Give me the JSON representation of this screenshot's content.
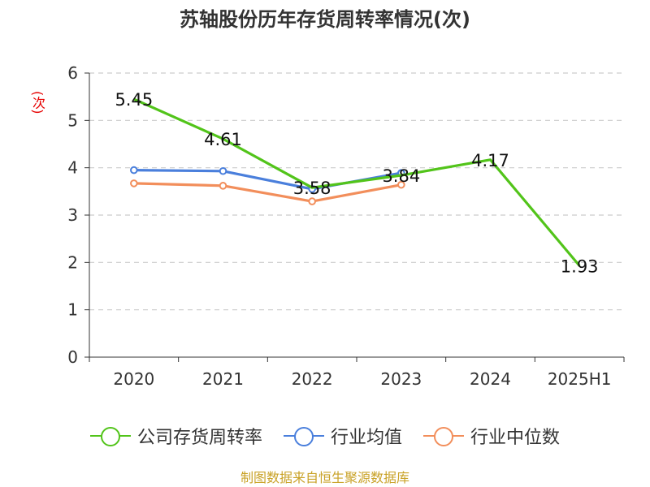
{
  "title": "苏轴股份历年存货周转率情况(次)",
  "footer": "制图数据来自恒生聚源数据库",
  "colors": {
    "company": "#52c41a",
    "industry_avg": "#4a7fdc",
    "industry_median": "#f28e5b",
    "grid": "#cccccc",
    "axis": "#333333",
    "ylabel": "#e60000",
    "footer": "#c9a227"
  },
  "chart_data": {
    "type": "line",
    "title": "苏轴股份历年存货周转率情况(次)",
    "ylabel": "(次)",
    "xlabel": "",
    "categories": [
      "2020",
      "2021",
      "2022",
      "2023",
      "2024",
      "2025H1"
    ],
    "ylim": [
      0,
      6
    ],
    "yticks": [
      "0",
      "1",
      "2",
      "3",
      "4",
      "5",
      "6"
    ],
    "grid": "horizontal dashed",
    "legend_position": "bottom",
    "series": [
      {
        "name": "公司存货周转率",
        "values": [
          5.45,
          4.61,
          3.58,
          3.84,
          4.17,
          1.93
        ],
        "labels": [
          "5.45",
          "4.61",
          "3.58",
          "3.84",
          "4.17",
          "1.93"
        ],
        "markers": false
      },
      {
        "name": "行业均值",
        "values": [
          3.95,
          3.93,
          3.55,
          3.89,
          null,
          null
        ],
        "markers": true
      },
      {
        "name": "行业中位数",
        "values": [
          3.67,
          3.62,
          3.29,
          3.64,
          null,
          null
        ],
        "markers": true
      }
    ]
  }
}
